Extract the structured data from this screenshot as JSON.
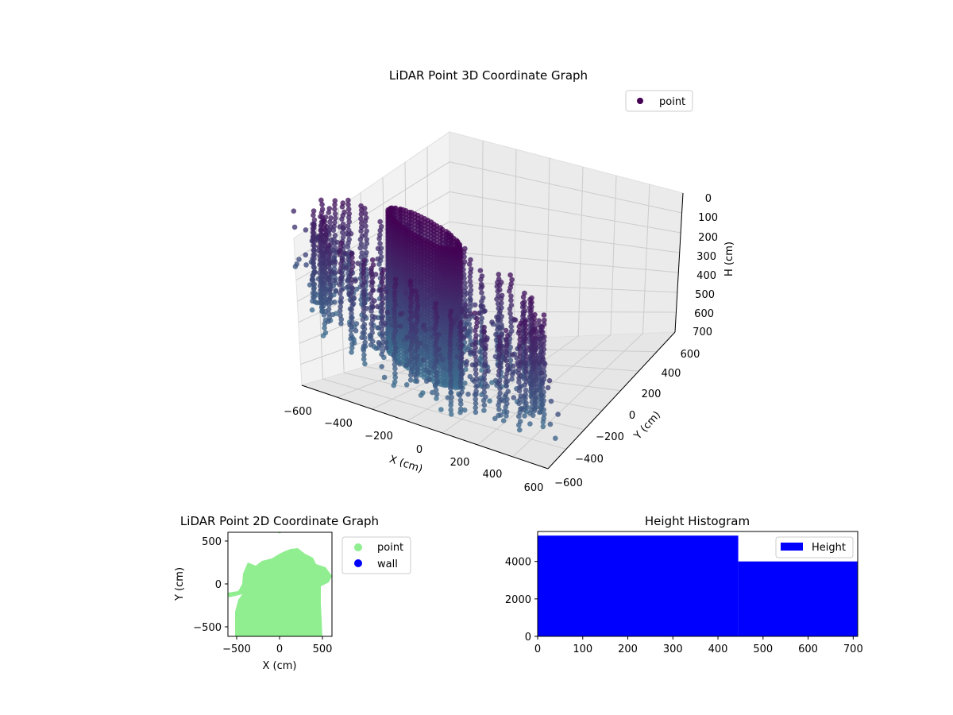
{
  "chart_data": [
    {
      "type": "scatter",
      "projection": "3d",
      "title": "LiDAR Point 3D Coordinate Graph",
      "xlabel": "X (cm)",
      "ylabel": "Y (cm)",
      "zlabel": "H (cm)",
      "xticks": [
        "−600",
        "−400",
        "−200",
        "0",
        "200",
        "400",
        "600"
      ],
      "yticks": [
        "−600",
        "−400",
        "−200",
        "0",
        "200",
        "400",
        "600"
      ],
      "zticks": [
        "0",
        "100",
        "200",
        "300",
        "400",
        "500",
        "600",
        "700"
      ],
      "xlim": [
        -600,
        600
      ],
      "ylim": [
        -600,
        600
      ],
      "zlim": [
        700,
        0
      ],
      "grid": true,
      "colormap": "viridis",
      "legend": {
        "position": "upper-right",
        "entries": [
          {
            "label": "point",
            "color": "#440154"
          }
        ]
      },
      "shape": "room scan with surrounding walls and a central cylindrical column from H 0 to 700"
    },
    {
      "type": "scatter",
      "title": "LiDAR Point 2D Coordinate Graph",
      "xlabel": "X (cm)",
      "ylabel": "Y (cm)",
      "xlim": [
        -600,
        600
      ],
      "ylim": [
        -600,
        600
      ],
      "xticks": [
        "−500",
        "0",
        "500"
      ],
      "yticks": [
        "−500",
        "0",
        "500"
      ],
      "grid": false,
      "legend": {
        "position": "outside-right",
        "entries": [
          {
            "label": "point",
            "color": "#90ee90"
          },
          {
            "label": "wall",
            "color": "#0000ff"
          }
        ]
      }
    },
    {
      "type": "bar",
      "subtype": "histogram",
      "title": "Height Histogram",
      "xlim": [
        0,
        710
      ],
      "ylim": [
        0,
        5600
      ],
      "xticks": [
        "0",
        "100",
        "200",
        "300",
        "400",
        "500",
        "600",
        "700"
      ],
      "yticks": [
        "0",
        "2000",
        "4000"
      ],
      "color": "#0000ff",
      "bins": [
        {
          "x0": 0,
          "x1": 445,
          "count": 5380
        },
        {
          "x0": 445,
          "x1": 710,
          "count": 4000
        }
      ],
      "legend": {
        "position": "upper-right",
        "entries": [
          {
            "label": "Height",
            "color": "#0000ff"
          }
        ]
      }
    }
  ]
}
